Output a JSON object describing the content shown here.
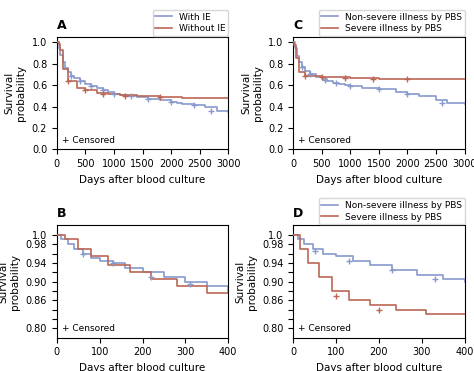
{
  "chart_data": [
    {
      "type": "step",
      "title": "A",
      "xlabel": "Days after blood culture",
      "ylabel": "Survival\nprobability",
      "xlim": [
        0,
        3000
      ],
      "ylim": [
        0.0,
        1.05
      ],
      "xticks": [
        0,
        500,
        1000,
        1500,
        2000,
        2500,
        3000
      ],
      "yticks": [
        0.0,
        0.2,
        0.4,
        0.6,
        0.8,
        1.0
      ],
      "legend": "upper right",
      "annotations": [
        {
          "text": "+ Censored"
        }
      ],
      "series": [
        {
          "name": "With IE",
          "color": "#8899cc",
          "x": [
            0,
            30,
            60,
            100,
            150,
            200,
            250,
            300,
            400,
            500,
            600,
            700,
            800,
            900,
            1000,
            1100,
            1200,
            1400,
            1600,
            1800,
            2000,
            2100,
            2200,
            2400,
            2600,
            2800,
            3000
          ],
          "values": [
            1.0,
            0.95,
            0.88,
            0.82,
            0.76,
            0.72,
            0.69,
            0.67,
            0.64,
            0.61,
            0.59,
            0.57,
            0.55,
            0.54,
            0.52,
            0.51,
            0.5,
            0.49,
            0.47,
            0.46,
            0.44,
            0.43,
            0.42,
            0.41,
            0.4,
            0.36,
            0.35
          ]
        },
        {
          "name": "Without IE",
          "color": "#bb6655",
          "x": [
            0,
            30,
            60,
            100,
            200,
            350,
            500,
            700,
            900,
            1100,
            1400,
            1800,
            2200,
            2700,
            3000
          ],
          "values": [
            1.0,
            0.99,
            0.93,
            0.75,
            0.64,
            0.57,
            0.55,
            0.53,
            0.52,
            0.51,
            0.5,
            0.49,
            0.48,
            0.48,
            0.48
          ]
        },
        {
          "type": "scatter",
          "marker": "+",
          "color": "#8899cc",
          "x": [
            250,
            400,
            600,
            800,
            1000,
            1300,
            1600,
            2000,
            2400,
            2700
          ],
          "values": [
            0.69,
            0.64,
            0.59,
            0.55,
            0.52,
            0.5,
            0.47,
            0.44,
            0.41,
            0.36
          ]
        },
        {
          "type": "scatter",
          "marker": "+",
          "color": "#bb6655",
          "x": [
            200,
            500,
            800,
            1200,
            1800
          ],
          "values": [
            0.64,
            0.55,
            0.52,
            0.5,
            0.49
          ]
        }
      ]
    },
    {
      "type": "step",
      "title": "B",
      "xlabel": "Days after blood culture",
      "ylabel": "Survival\nprobability",
      "xlim": [
        0,
        400
      ],
      "ylim": [
        0.78,
        1.02
      ],
      "xticks": [
        0,
        100,
        200,
        300,
        400
      ],
      "yticks": [
        {
          "value": 0.8,
          "label": "0.80"
        },
        {
          "value": 0.82,
          "label": null
        },
        {
          "value": 0.84,
          "label": null
        },
        0.86,
        {
          "value": 0.88,
          "label": null
        },
        {
          "value": 0.9,
          "label": "0.90"
        },
        {
          "value": 0.92,
          "label": null
        },
        0.94,
        {
          "value": 0.96,
          "label": null
        },
        0.98,
        1.0
      ],
      "annotations": [
        {
          "text": "+ Censored"
        }
      ],
      "series": [
        {
          "color": "#8899cc",
          "x": [
            0,
            10,
            25,
            40,
            60,
            80,
            100,
            130,
            160,
            200,
            250,
            300,
            350,
            400
          ],
          "values": [
            1.0,
            0.99,
            0.98,
            0.97,
            0.96,
            0.95,
            0.945,
            0.94,
            0.93,
            0.92,
            0.91,
            0.9,
            0.89,
            0.875
          ]
        },
        {
          "color": "#bb6655",
          "x": [
            0,
            20,
            50,
            80,
            120,
            170,
            220,
            280,
            350,
            400
          ],
          "values": [
            1.0,
            0.99,
            0.97,
            0.955,
            0.935,
            0.92,
            0.905,
            0.89,
            0.875,
            0.875
          ]
        },
        {
          "type": "scatter",
          "marker": "+",
          "color": "#8899cc",
          "x": [
            60,
            130,
            220,
            310
          ],
          "values": [
            0.96,
            0.94,
            0.91,
            0.895
          ]
        }
      ]
    },
    {
      "type": "step",
      "title": "C",
      "xlabel": "Days after blood culture",
      "ylabel": "Survival\nprobability",
      "xlim": [
        0,
        3000
      ],
      "ylim": [
        0.0,
        1.05
      ],
      "xticks": [
        0,
        500,
        1000,
        1500,
        2000,
        2500,
        3000
      ],
      "yticks": [
        0.0,
        0.2,
        0.4,
        0.6,
        0.8,
        1.0
      ],
      "legend": "upper right",
      "annotations": [
        {
          "text": "+ Censored"
        }
      ],
      "series": [
        {
          "name": "Non-severe illness by PBS",
          "color": "#8899cc",
          "x": [
            0,
            30,
            60,
            100,
            150,
            200,
            300,
            400,
            500,
            600,
            700,
            800,
            900,
            1000,
            1200,
            1500,
            1800,
            2000,
            2200,
            2500,
            2700,
            3000
          ],
          "values": [
            1.0,
            0.95,
            0.87,
            0.82,
            0.77,
            0.73,
            0.7,
            0.68,
            0.66,
            0.64,
            0.62,
            0.61,
            0.6,
            0.59,
            0.57,
            0.56,
            0.54,
            0.52,
            0.5,
            0.46,
            0.43,
            0.42
          ]
        },
        {
          "name": "Severe illness by PBS",
          "color": "#bb6655",
          "x": [
            0,
            20,
            50,
            100,
            200,
            500,
            1000,
            1500,
            2000,
            2500,
            3000
          ],
          "values": [
            1.0,
            0.98,
            0.85,
            0.72,
            0.69,
            0.68,
            0.67,
            0.66,
            0.66,
            0.66,
            0.66
          ]
        },
        {
          "type": "scatter",
          "marker": "+",
          "color": "#8899cc",
          "x": [
            150,
            300,
            550,
            750,
            1000,
            1500,
            2000,
            2600
          ],
          "values": [
            0.77,
            0.7,
            0.65,
            0.62,
            0.59,
            0.56,
            0.52,
            0.43
          ]
        },
        {
          "type": "scatter",
          "marker": "+",
          "color": "#bb6655",
          "x": [
            200,
            500,
            900,
            1400,
            2000
          ],
          "values": [
            0.69,
            0.68,
            0.67,
            0.66,
            0.66
          ]
        }
      ]
    },
    {
      "type": "step",
      "title": "D",
      "xlabel": "Days after blood culture",
      "ylabel": "Survival\nprobability",
      "xlim": [
        0,
        400
      ],
      "ylim": [
        0.78,
        1.02
      ],
      "xticks": [
        0,
        100,
        200,
        300,
        400
      ],
      "yticks": [
        {
          "value": 0.8,
          "label": "0.80"
        },
        {
          "value": 0.82,
          "label": null
        },
        {
          "value": 0.84,
          "label": null
        },
        0.86,
        {
          "value": 0.88,
          "label": null
        },
        {
          "value": 0.9,
          "label": "0.90"
        },
        {
          "value": 0.92,
          "label": null
        },
        0.94,
        {
          "value": 0.96,
          "label": null
        },
        0.98,
        1.0
      ],
      "legend": "upper right",
      "annotations": [
        {
          "text": "+ Censored"
        }
      ],
      "series": [
        {
          "name": "Non-severe illness by PBS",
          "color": "#8899cc",
          "x": [
            0,
            10,
            25,
            45,
            70,
            100,
            140,
            180,
            230,
            290,
            350,
            400
          ],
          "values": [
            1.0,
            0.99,
            0.98,
            0.97,
            0.96,
            0.955,
            0.945,
            0.935,
            0.925,
            0.915,
            0.905,
            0.9
          ]
        },
        {
          "name": "Severe illness by PBS",
          "color": "#bb6655",
          "x": [
            0,
            15,
            35,
            60,
            90,
            130,
            180,
            240,
            310,
            380,
            400
          ],
          "values": [
            1.0,
            0.97,
            0.94,
            0.91,
            0.88,
            0.86,
            0.85,
            0.84,
            0.83,
            0.83,
            0.83
          ]
        },
        {
          "type": "scatter",
          "marker": "+",
          "color": "#8899cc",
          "x": [
            50,
            130,
            230,
            330
          ],
          "values": [
            0.965,
            0.945,
            0.925,
            0.905
          ]
        },
        {
          "type": "scatter",
          "marker": "+",
          "color": "#bb6655",
          "x": [
            100,
            200
          ],
          "values": [
            0.87,
            0.84
          ]
        }
      ]
    }
  ]
}
